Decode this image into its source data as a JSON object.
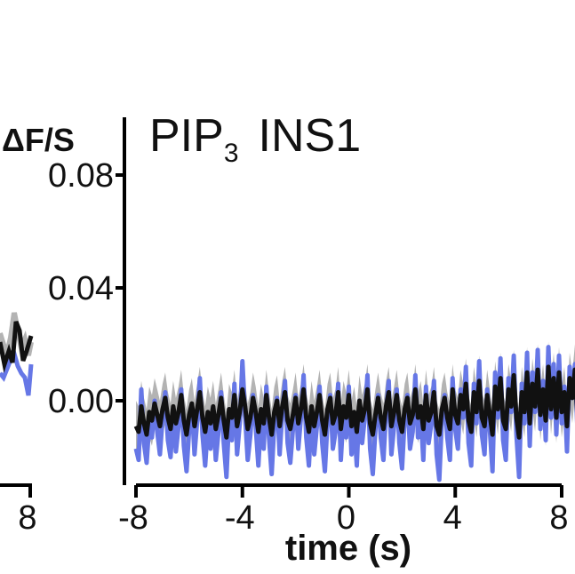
{
  "chart_data": {
    "type": "line",
    "title_main": "PIP",
    "title_subscript": "3",
    "title_suffix": "INS1",
    "ylabel": "ΔF/S",
    "xlabel": "time (s)",
    "xlim": [
      -8,
      8
    ],
    "ylim": [
      -0.03,
      0.1
    ],
    "x_ticks": [
      -8,
      -4,
      0,
      4,
      8
    ],
    "x_tick_labels": [
      "-8",
      "-4",
      "0",
      "4",
      "8"
    ],
    "y_ticks": [
      0.0,
      0.04,
      0.08
    ],
    "y_tick_labels": [
      "0.00",
      "0.04",
      "0.08"
    ],
    "left_panel_tick_label": "8",
    "colors": {
      "mean": "#111111",
      "band": "#b3b3b3",
      "alt": "#6677e6",
      "axis": "#000000"
    },
    "series": [
      {
        "name": "mean",
        "x_start": -8,
        "x_step": 0.1,
        "values": [
          -0.009,
          -0.011,
          -0.002,
          -0.008,
          -0.012,
          -0.004,
          -0.007,
          -0.001,
          -0.005,
          -0.009,
          -0.003,
          0.001,
          -0.006,
          -0.01,
          -0.002,
          -0.008,
          -0.004,
          0.002,
          -0.007,
          -0.012,
          -0.005,
          -0.001,
          -0.009,
          -0.003,
          0.003,
          -0.006,
          -0.011,
          -0.004,
          -0.008,
          -0.002,
          -0.01,
          -0.005,
          0.001,
          -0.007,
          -0.013,
          -0.003,
          -0.006,
          0.002,
          -0.009,
          -0.004,
          0.004,
          -0.002,
          -0.01,
          -0.006,
          0.001,
          -0.004,
          -0.011,
          -0.003,
          -0.008,
          0.002,
          -0.006,
          -0.012,
          -0.004,
          0.0,
          -0.009,
          -0.002,
          0.003,
          -0.007,
          -0.01,
          -0.005,
          0.001,
          -0.008,
          -0.003,
          0.004,
          -0.006,
          -0.011,
          -0.002,
          -0.009,
          -0.004,
          0.002,
          -0.007,
          -0.012,
          -0.003,
          0.001,
          -0.008,
          -0.005,
          0.003,
          -0.01,
          -0.002,
          -0.006,
          0.002,
          -0.009,
          -0.004,
          -0.011,
          0.0,
          -0.007,
          -0.003,
          0.004,
          -0.008,
          -0.012,
          -0.005,
          0.001,
          -0.006,
          -0.01,
          -0.002,
          0.003,
          -0.009,
          -0.004,
          0.002,
          -0.007,
          -0.011,
          -0.003,
          0.001,
          -0.008,
          -0.005,
          0.004,
          -0.006,
          -0.002,
          -0.01,
          0.002,
          -0.007,
          -0.004,
          0.003,
          -0.009,
          -0.012,
          -0.003,
          0.001,
          -0.006,
          -0.01,
          0.004,
          -0.005,
          -0.008,
          0.002,
          -0.003,
          0.006,
          -0.007,
          -0.011,
          0.003,
          -0.004,
          0.007,
          -0.006,
          -0.009,
          0.002,
          -0.005,
          -0.012,
          0.005,
          -0.003,
          0.008,
          -0.007,
          -0.01,
          0.004,
          -0.002,
          0.009,
          -0.006,
          -0.013,
          0.003,
          -0.004,
          0.01,
          -0.008,
          0.006,
          -0.002,
          0.011,
          -0.005,
          0.004,
          -0.007,
          0.012,
          -0.003,
          0.008,
          -0.006,
          0.01,
          -0.004,
          0.003,
          -0.009,
          0.008,
          0.001,
          0.011,
          -0.007
        ]
      },
      {
        "name": "alt",
        "x_start": -8,
        "x_step": 0.1,
        "values": [
          -0.017,
          -0.021,
          0.004,
          -0.015,
          -0.022,
          -0.008,
          -0.013,
          0.0,
          -0.011,
          -0.019,
          -0.006,
          0.003,
          -0.014,
          -0.02,
          -0.004,
          -0.018,
          -0.009,
          0.004,
          -0.016,
          -0.025,
          -0.01,
          -0.002,
          -0.019,
          -0.007,
          0.008,
          -0.012,
          -0.023,
          -0.009,
          -0.017,
          -0.004,
          -0.021,
          -0.011,
          0.003,
          -0.015,
          -0.027,
          -0.006,
          -0.014,
          0.006,
          -0.019,
          -0.008,
          0.014,
          -0.005,
          -0.021,
          -0.012,
          0.002,
          -0.009,
          -0.023,
          -0.006,
          -0.017,
          0.005,
          -0.013,
          -0.026,
          -0.008,
          0.001,
          -0.019,
          -0.004,
          0.007,
          -0.015,
          -0.022,
          -0.01,
          0.002,
          -0.017,
          -0.006,
          0.009,
          -0.013,
          -0.023,
          -0.004,
          -0.019,
          -0.009,
          0.005,
          -0.015,
          -0.025,
          -0.007,
          0.002,
          -0.017,
          -0.011,
          0.006,
          -0.021,
          -0.004,
          -0.013,
          0.005,
          -0.019,
          -0.008,
          -0.023,
          0.0,
          -0.015,
          -0.006,
          0.009,
          -0.017,
          -0.026,
          -0.01,
          0.002,
          -0.013,
          -0.021,
          -0.004,
          0.007,
          -0.019,
          -0.009,
          0.004,
          -0.015,
          -0.024,
          -0.006,
          0.002,
          -0.017,
          -0.011,
          0.009,
          -0.013,
          -0.004,
          -0.021,
          0.005,
          -0.015,
          -0.008,
          0.007,
          -0.019,
          -0.028,
          -0.006,
          0.002,
          -0.013,
          -0.021,
          0.008,
          -0.01,
          -0.017,
          0.004,
          -0.006,
          0.012,
          -0.015,
          -0.023,
          0.006,
          -0.008,
          0.014,
          -0.012,
          -0.019,
          0.004,
          -0.01,
          -0.025,
          0.01,
          -0.006,
          0.015,
          -0.014,
          -0.021,
          0.008,
          -0.004,
          0.016,
          -0.012,
          -0.027,
          0.006,
          -0.008,
          0.017,
          -0.016,
          0.01,
          -0.004,
          0.018,
          -0.01,
          0.007,
          -0.014,
          0.019,
          -0.006,
          0.013,
          -0.012,
          0.016,
          -0.008,
          0.005,
          -0.018,
          0.012,
          0.001,
          0.013,
          -0.012
        ]
      }
    ],
    "band_halfwidth": 0.009
  }
}
